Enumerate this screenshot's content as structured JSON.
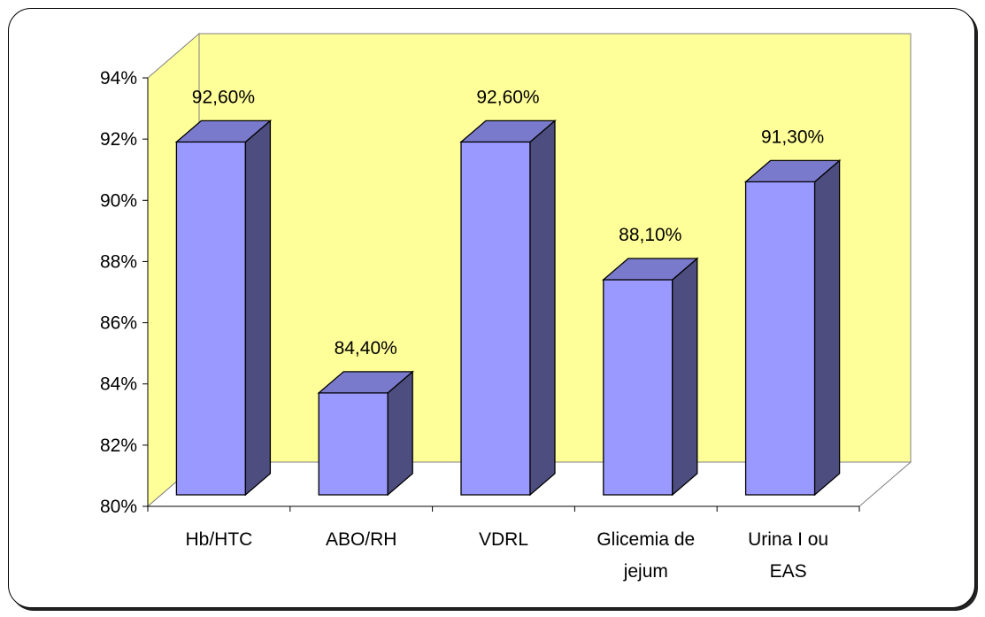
{
  "chart_data": {
    "type": "bar",
    "title": "",
    "xlabel": "",
    "ylabel": "",
    "categories": [
      "Hb/HTC",
      "ABO/RH",
      "VDRL",
      "Glicemia de jejum",
      "Urina I ou EAS"
    ],
    "category_lines": [
      [
        "Hb/HTC"
      ],
      [
        "ABO/RH"
      ],
      [
        "VDRL"
      ],
      [
        "Glicemia de",
        "jejum"
      ],
      [
        "Urina I ou",
        "EAS"
      ]
    ],
    "values": [
      92.6,
      84.4,
      92.6,
      88.1,
      91.3
    ],
    "value_labels": [
      "92,60%",
      "84,40%",
      "92,60%",
      "88,10%",
      "91,30%"
    ],
    "ylim": [
      80,
      94
    ],
    "yticks": [
      80,
      82,
      84,
      86,
      88,
      90,
      92,
      94
    ],
    "ytick_labels": [
      "80%",
      "82%",
      "84%",
      "86%",
      "88%",
      "90%",
      "92%",
      "94%"
    ],
    "grid": false,
    "legend": "none",
    "style": "3d-column",
    "colors": {
      "wall": "#FFFF99",
      "bar_front": "#9999FF",
      "bar_side": "#4D4D80",
      "bar_top": "#7A7ACC"
    }
  }
}
